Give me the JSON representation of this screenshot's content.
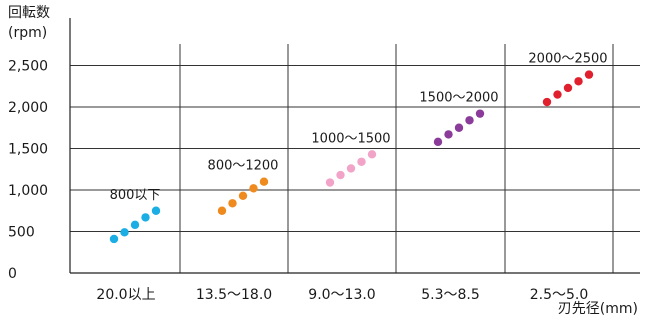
{
  "chart_data": {
    "type": "scatter",
    "ylabel_title": "回転数",
    "ylabel_unit": "(rpm)",
    "xlabel": "刃先径(mm)",
    "yticks": [
      "0",
      "500",
      "1,000",
      "1,500",
      "2,000",
      "2,500"
    ],
    "ytick_values": [
      0,
      500,
      1000,
      1500,
      2000,
      2500
    ],
    "ylim": [
      0,
      2800
    ],
    "grid": true,
    "categories": [
      "20.0以上",
      "13.5〜18.0",
      "9.0〜13.0",
      "5.3〜8.5",
      "2.5〜5.0"
    ],
    "groups": [
      {
        "label": "800以下",
        "color": "#1aaee5",
        "points": [
          [
            0,
            410
          ],
          [
            0.2,
            490
          ],
          [
            0.4,
            580
          ],
          [
            0.6,
            670
          ],
          [
            0.8,
            750
          ]
        ]
      },
      {
        "label": "800〜1200",
        "color": "#ef8a1f",
        "points": [
          [
            0,
            750
          ],
          [
            0.2,
            840
          ],
          [
            0.4,
            930
          ],
          [
            0.6,
            1020
          ],
          [
            0.8,
            1100
          ]
        ]
      },
      {
        "label": "1000〜1500",
        "color": "#f2a3c8",
        "points": [
          [
            0,
            1090
          ],
          [
            0.2,
            1180
          ],
          [
            0.4,
            1260
          ],
          [
            0.6,
            1340
          ],
          [
            0.8,
            1430
          ]
        ]
      },
      {
        "label": "1500〜2000",
        "color": "#8b3c9b",
        "points": [
          [
            0,
            1580
          ],
          [
            0.2,
            1670
          ],
          [
            0.4,
            1750
          ],
          [
            0.6,
            1840
          ],
          [
            0.8,
            1920
          ]
        ]
      },
      {
        "label": "2000〜2500",
        "color": "#e0202d",
        "points": [
          [
            0,
            2060
          ],
          [
            0.2,
            2150
          ],
          [
            0.4,
            2230
          ],
          [
            0.6,
            2310
          ],
          [
            0.8,
            2390
          ]
        ]
      }
    ]
  }
}
